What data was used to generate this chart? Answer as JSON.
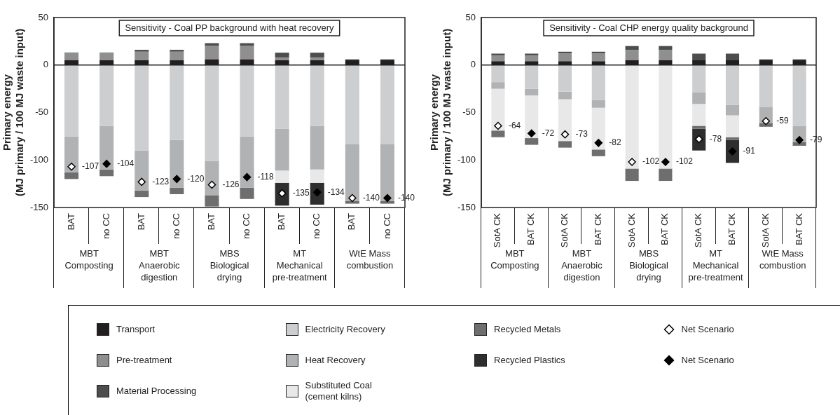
{
  "chart_data": [
    {
      "type": "bar",
      "stacked": true,
      "title": "Sensitivity - Coal PP background with heat recovery",
      "ylabel": "Primary energy\n(MJ primary / 100 MJ waste input)",
      "categories": [
        "BAT",
        "no CC",
        "BAT",
        "no CC",
        "BAT",
        "no CC",
        "BAT",
        "no CC",
        "BAT",
        "no CC"
      ],
      "ylim": [
        -150,
        50
      ],
      "yticks": [
        -150,
        -100,
        -50,
        0,
        50
      ],
      "grid": false,
      "legend": "bottom",
      "ref_lines": [
        {
          "axis": "y",
          "value": 0,
          "color": "#222222"
        }
      ],
      "annotations": [
        "MBT\nComposting",
        "MBT\nAnaerobic\ndigestion",
        "MBS\nBiological\ndrying",
        "MT\nMechanical\npre-treatment",
        "WtE Mass\ncombustion"
      ],
      "series": [
        {
          "name": "Transport",
          "color": "#231f20",
          "values": [
            5,
            5,
            5,
            5,
            6,
            6,
            5,
            5,
            5,
            5
          ]
        },
        {
          "name": "Pre-treatment",
          "color": "#8f8f8f",
          "values": [
            7,
            7,
            9,
            9,
            14,
            14,
            3,
            3,
            null,
            null
          ]
        },
        {
          "name": "Material Processing",
          "color": "#4d4d4d",
          "values": [
            1,
            1,
            2,
            2,
            3,
            3,
            5,
            5,
            1,
            1
          ]
        },
        {
          "name": "Electricity Recovery",
          "color": "#cdced0",
          "values": [
            -75,
            -64,
            -90,
            -79,
            -101,
            -75,
            -67,
            -64,
            -83,
            -83
          ]
        },
        {
          "name": "Heat Recovery",
          "color": "#b1b2b4",
          "values": [
            -38,
            -46,
            -42,
            -50,
            -36,
            -54,
            -44,
            -46,
            -60,
            -60
          ]
        },
        {
          "name": "Substituted Coal\n(cement kilns)",
          "color": "#e8e8e8",
          "values": [
            null,
            null,
            null,
            null,
            null,
            null,
            -13,
            -14,
            null,
            null
          ]
        },
        {
          "name": "Recycled Metals",
          "color": "#6e6e6e",
          "values": [
            -7,
            -7,
            -7,
            -7,
            -12,
            -12,
            null,
            null,
            -3,
            -3
          ]
        },
        {
          "name": "Recycled Plastics",
          "color": "#2e2e2e",
          "values": [
            null,
            null,
            null,
            null,
            null,
            null,
            -24,
            -23,
            null,
            null
          ]
        },
        {
          "name": "Net Scenario",
          "type": "scatter",
          "marker": "diamond",
          "color": "#ffffff",
          "values": [
            -107,
            null,
            -123,
            null,
            -126,
            null,
            -135,
            null,
            -140,
            null
          ],
          "value_labels": [
            "-107",
            null,
            "-123",
            null,
            "-126",
            null,
            "-135",
            null,
            "-140",
            null
          ]
        },
        {
          "name": "Net Scenario",
          "type": "scatter",
          "marker": "diamond",
          "color": "#000000",
          "values": [
            null,
            -104,
            null,
            -120,
            null,
            -118,
            null,
            -134,
            null,
            -140
          ],
          "value_labels": [
            null,
            "-104",
            null,
            "-120",
            null,
            "-118",
            null,
            "-134",
            null,
            "-140"
          ]
        }
      ]
    },
    {
      "type": "bar",
      "stacked": true,
      "title": "Sensitivity - Coal CHP energy quality background",
      "ylabel": "Primary energy\n(MJ primary / 100 MJ waste input)",
      "categories": [
        "SotA CK",
        "BAT CK",
        "SotA CK",
        "BAT CK",
        "SotA CK",
        "BAT CK",
        "SotA CK",
        "BAT CK",
        "SotA CK",
        "BAT CK"
      ],
      "ylim": [
        -150,
        50
      ],
      "yticks": [
        -150,
        -100,
        -50,
        0,
        50
      ],
      "grid": false,
      "ref_lines": [
        {
          "axis": "y",
          "value": 0,
          "color": "#222222"
        }
      ],
      "annotations": [
        "MBT\nComposting",
        "MBT\nAnaerobic\ndigestion",
        "MBS\nBiological\ndrying",
        "MT\nMechanical\npre-treatment",
        "WtE Mass\ncombustion"
      ],
      "series": [
        {
          "color": "#231f20",
          "values": [
            4,
            4,
            4,
            4,
            5,
            5,
            5,
            5,
            5,
            5
          ]
        },
        {
          "color": "#8f8f8f",
          "values": [
            6,
            6,
            8,
            8,
            11,
            11,
            null,
            null,
            null,
            null
          ]
        },
        {
          "color": "#4d4d4d",
          "values": [
            2,
            2,
            2,
            2,
            4,
            4,
            7,
            7,
            1,
            1
          ]
        },
        {
          "color": "#cdced0",
          "values": [
            -18,
            -25,
            -28,
            -37,
            null,
            null,
            -29,
            -42,
            -44,
            -64
          ]
        },
        {
          "color": "#b1b2b4",
          "values": [
            -7,
            -7,
            -8,
            -8,
            null,
            null,
            -12,
            -11,
            -17,
            -17
          ]
        },
        {
          "color": "#e8e8e8",
          "values": [
            -44,
            -45,
            -44,
            -44,
            -109,
            -109,
            -23,
            -23,
            null,
            null
          ]
        },
        {
          "color": "#6e6e6e",
          "values": [
            -7,
            -7,
            -7,
            -7,
            -13,
            -13,
            -3,
            -3,
            -4,
            -4
          ]
        },
        {
          "color": "#2e2e2e",
          "values": [
            null,
            null,
            null,
            null,
            null,
            null,
            -23,
            -24,
            null,
            null
          ]
        },
        {
          "type": "scatter",
          "marker": "diamond",
          "color": "#ffffff",
          "values": [
            -64,
            null,
            -73,
            null,
            -102,
            null,
            -78,
            null,
            -59,
            null
          ],
          "value_labels": [
            "-64",
            null,
            "-73",
            null,
            "-102",
            null,
            "-78",
            null,
            "-59",
            null
          ]
        },
        {
          "type": "scatter",
          "marker": "diamond",
          "color": "#000000",
          "values": [
            null,
            -72,
            null,
            -82,
            null,
            -102,
            null,
            -91,
            null,
            -79
          ],
          "value_labels": [
            null,
            "-72",
            null,
            "-82",
            null,
            "-102",
            null,
            "-91",
            null,
            "-79"
          ]
        }
      ]
    }
  ]
}
